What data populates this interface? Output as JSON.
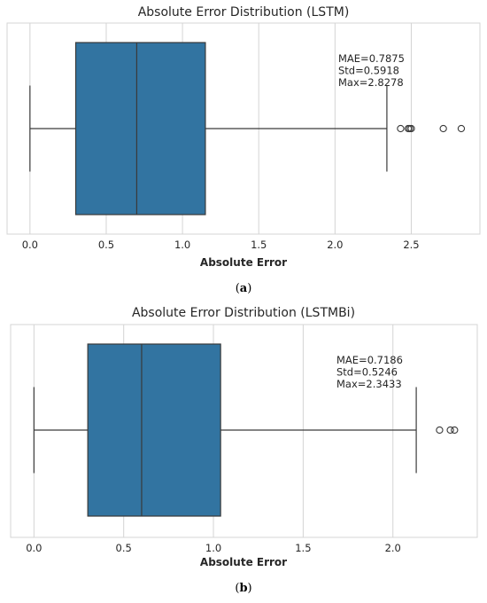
{
  "chart_data": [
    {
      "type": "box",
      "title": "Absolute Error Distribution (LSTM)",
      "xlabel": "Absolute Error",
      "ylabel": "",
      "xlim": [
        -0.15,
        2.95
      ],
      "xticks": [
        0.0,
        0.5,
        1.0,
        1.5,
        2.0,
        2.5
      ],
      "xtick_labels": [
        "0.0",
        "0.5",
        "1.0",
        "1.5",
        "2.0",
        "2.5"
      ],
      "grid": "vertical",
      "box": {
        "whisker_low": 0.0,
        "q1": 0.3,
        "median": 0.7,
        "q3": 1.15,
        "whisker_high": 2.34
      },
      "outliers": [
        2.43,
        2.48,
        2.49,
        2.5,
        2.71,
        2.8278
      ],
      "stats_text": [
        "MAE=0.7875",
        "Std=0.5918",
        "Max=2.8278"
      ],
      "caption": "a"
    },
    {
      "type": "box",
      "title": "Absolute Error Distribution (LSTMBi)",
      "xlabel": "Absolute Error",
      "ylabel": "",
      "xlim": [
        -0.13,
        2.47
      ],
      "xticks": [
        0.0,
        0.5,
        1.0,
        1.5,
        2.0
      ],
      "xtick_labels": [
        "0.0",
        "0.5",
        "1.0",
        "1.5",
        "2.0"
      ],
      "grid": "vertical",
      "box": {
        "whisker_low": 0.0,
        "q1": 0.3,
        "median": 0.6,
        "q3": 1.04,
        "whisker_high": 2.13
      },
      "outliers": [
        2.26,
        2.32,
        2.3433
      ],
      "stats_text": [
        "MAE=0.7186",
        "Std=0.5246",
        "Max=2.3433"
      ],
      "caption": "b"
    }
  ],
  "colors": {
    "box_fill": "#3274a1",
    "line": "#3a3a3a",
    "grid": "#d4d4d4",
    "frame": "#d4d4d4"
  }
}
